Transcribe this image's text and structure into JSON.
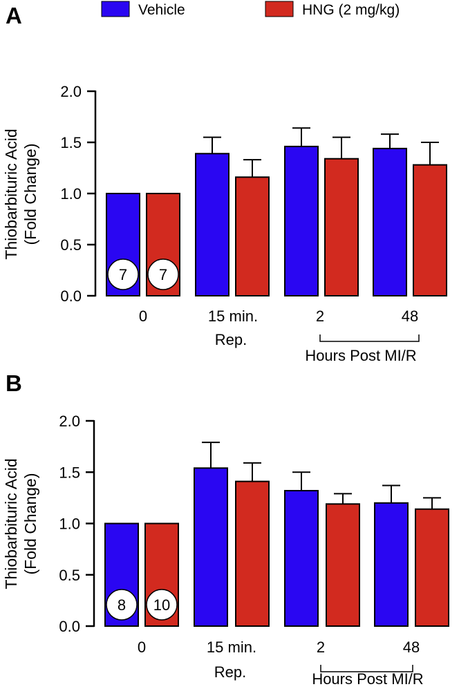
{
  "legend": {
    "items": [
      {
        "label": "Vehicle",
        "color": "#2a06f2"
      },
      {
        "label": "HNG (2 mg/kg)",
        "color": "#d22a1f"
      }
    ]
  },
  "chart_data": [
    {
      "type": "bar",
      "panel_label": "A",
      "ylabel_lines": [
        "Thiobarbituric Acid",
        "(Fold Change)"
      ],
      "ylim": [
        0,
        2.0
      ],
      "yticks": [
        0.0,
        0.5,
        1.0,
        1.5,
        2.0
      ],
      "ytick_labels": [
        "0.0",
        "0.5",
        "1.0",
        "1.5",
        "2.0"
      ],
      "categories": [
        "0",
        "15 min.",
        "2",
        "48"
      ],
      "category_sublabels": [
        "",
        "Rep.",
        "",
        ""
      ],
      "bracket_label": "Hours Post MI/R",
      "series": [
        {
          "name": "Vehicle",
          "values": [
            1.0,
            1.39,
            1.46,
            1.44
          ],
          "errors": [
            0,
            0.16,
            0.18,
            0.14
          ]
        },
        {
          "name": "HNG (2 mg/kg)",
          "values": [
            1.0,
            1.16,
            1.34,
            1.28
          ],
          "errors": [
            0,
            0.17,
            0.21,
            0.22
          ]
        }
      ],
      "n_labels": [
        "7",
        "7"
      ]
    },
    {
      "type": "bar",
      "panel_label": "B",
      "ylabel_lines": [
        "Thiobarbituric Acid",
        "(Fold Change)"
      ],
      "ylim": [
        0,
        2.0
      ],
      "yticks": [
        0.0,
        0.5,
        1.0,
        1.5,
        2.0
      ],
      "ytick_labels": [
        "0.0",
        "0.5",
        "1.0",
        "1.5",
        "2.0"
      ],
      "categories": [
        "0",
        "15 min.",
        "2",
        "48"
      ],
      "category_sublabels": [
        "",
        "Rep.",
        "",
        ""
      ],
      "bracket_label": "Hours Post MI/R",
      "series": [
        {
          "name": "Vehicle",
          "values": [
            1.0,
            1.54,
            1.32,
            1.2
          ],
          "errors": [
            0,
            0.25,
            0.18,
            0.17
          ]
        },
        {
          "name": "HNG (2 mg/kg)",
          "values": [
            1.0,
            1.41,
            1.19,
            1.14
          ],
          "errors": [
            0,
            0.18,
            0.1,
            0.11
          ]
        }
      ],
      "n_labels": [
        "8",
        "10"
      ]
    }
  ]
}
